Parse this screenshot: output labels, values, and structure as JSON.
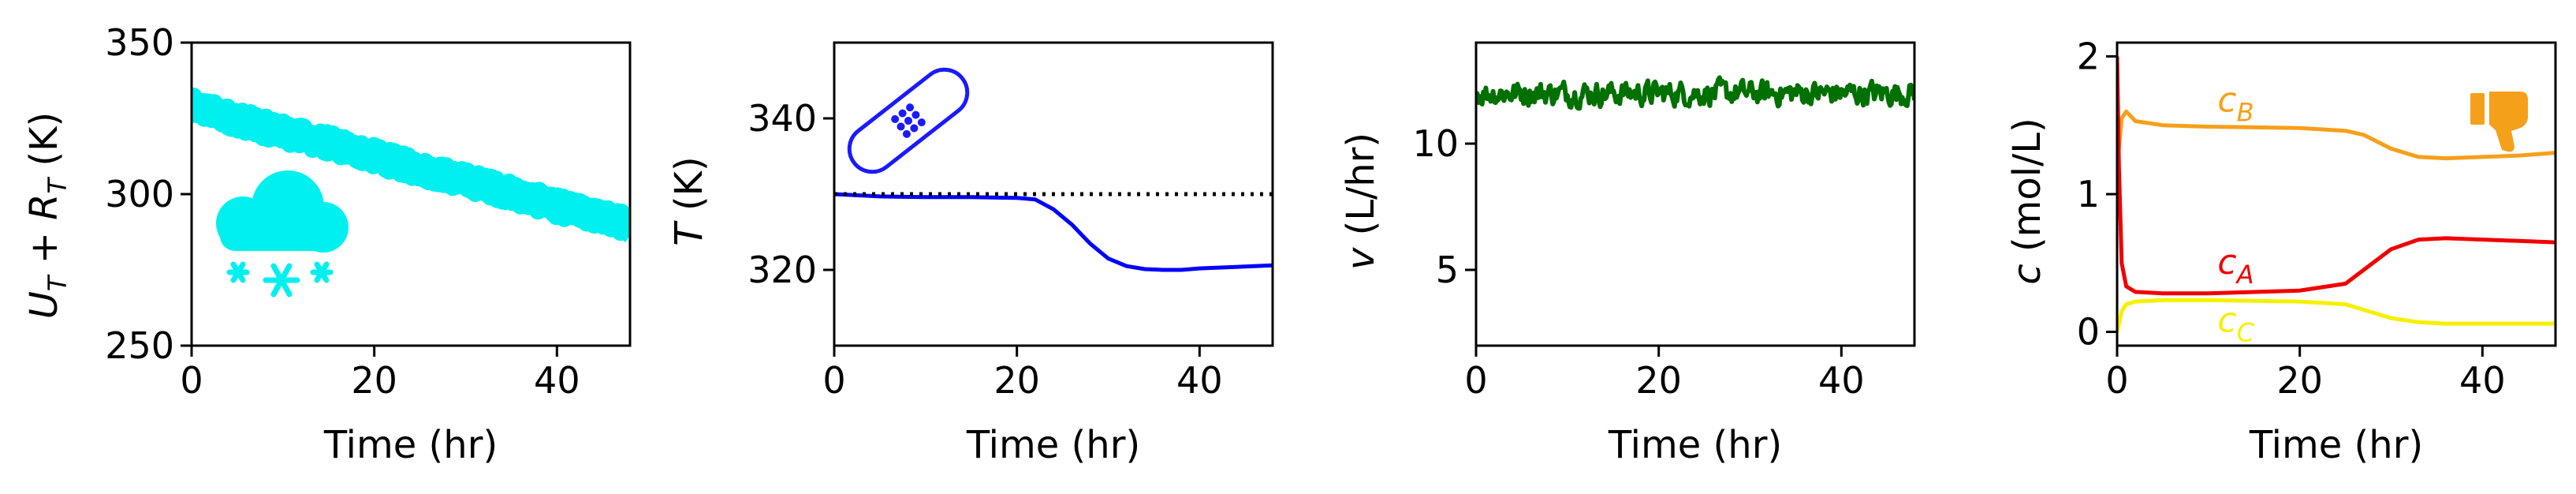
{
  "chart_data": [
    {
      "type": "line",
      "xlabel": "Time (hr)",
      "ylabel_tex": "U_T + R_T (K)",
      "xlim": [
        0,
        48
      ],
      "ylim": [
        250,
        350
      ],
      "xticks": [
        "0",
        "20",
        "40"
      ],
      "yticks": [
        "250",
        "300",
        "350"
      ],
      "series": [
        {
          "color": "#00f0f0",
          "style": "noisy-band",
          "x": [
            0,
            8,
            16,
            24,
            32,
            40,
            48
          ],
          "values": [
            329,
            322,
            316,
            309,
            303,
            296,
            290
          ],
          "noise": 3.5
        }
      ],
      "icon": "snow-cloud-icon",
      "icon_color": "#00f0f0"
    },
    {
      "type": "line",
      "xlabel": "Time (hr)",
      "ylabel_tex": "T (K)",
      "xlim": [
        0,
        48
      ],
      "ylim": [
        310,
        350
      ],
      "xticks": [
        "0",
        "20",
        "40"
      ],
      "yticks": [
        "320",
        "340"
      ],
      "series": [
        {
          "color": "#0000ff",
          "x": [
            0,
            5,
            10,
            15,
            20,
            22,
            24,
            26,
            28,
            30,
            32,
            34,
            36,
            38,
            40,
            44,
            48
          ],
          "values": [
            330,
            329.7,
            329.6,
            329.6,
            329.5,
            329.3,
            328,
            326,
            323.5,
            321.5,
            320.5,
            320.1,
            320,
            320,
            320.2,
            320.4,
            320.6
          ]
        },
        {
          "color": "#000000",
          "style": "dotted",
          "x": [
            0,
            48
          ],
          "values": [
            330,
            330
          ]
        }
      ],
      "icon": "bandage-icon",
      "icon_color": "#1a1aff"
    },
    {
      "type": "line",
      "xlabel": "Time (hr)",
      "ylabel_tex": "v (L/hr)",
      "xlim": [
        0,
        48
      ],
      "ylim": [
        2,
        14
      ],
      "xticks": [
        "0",
        "20",
        "40"
      ],
      "yticks": [
        "5",
        "10"
      ],
      "series": [
        {
          "color": "#007000",
          "style": "noisy-line",
          "x": [
            0,
            48
          ],
          "values": [
            12,
            12
          ],
          "noise": 0.4
        }
      ]
    },
    {
      "type": "line",
      "xlabel": "Time (hr)",
      "ylabel_tex": "c (mol/L)",
      "xlim": [
        0,
        48
      ],
      "ylim": [
        -0.1,
        2.1
      ],
      "xticks": [
        "0",
        "20",
        "40"
      ],
      "yticks": [
        "0",
        "1",
        "2"
      ],
      "series": [
        {
          "name_main": "c",
          "name_sub": "B",
          "color": "#f5a01a",
          "x": [
            0,
            0.5,
            1,
            2,
            5,
            10,
            20,
            25,
            27,
            30,
            33,
            36,
            40,
            44,
            48
          ],
          "values": [
            1.2,
            1.55,
            1.6,
            1.53,
            1.5,
            1.49,
            1.48,
            1.46,
            1.43,
            1.33,
            1.27,
            1.26,
            1.27,
            1.28,
            1.3
          ],
          "label_at": [
            11,
            1.6
          ]
        },
        {
          "name_main": "c",
          "name_sub": "A",
          "color": "#f00000",
          "x": [
            0,
            0.2,
            0.5,
            1,
            2,
            5,
            10,
            20,
            25,
            27,
            30,
            33,
            36,
            40,
            44,
            48
          ],
          "values": [
            2.0,
            1.2,
            0.5,
            0.33,
            0.29,
            0.28,
            0.28,
            0.3,
            0.35,
            0.45,
            0.6,
            0.67,
            0.68,
            0.67,
            0.66,
            0.65
          ],
          "label_at": [
            11,
            0.42
          ]
        },
        {
          "name_main": "c",
          "name_sub": "C",
          "color": "#f5f000",
          "x": [
            0,
            0.5,
            1,
            2,
            5,
            10,
            20,
            25,
            27,
            30,
            33,
            36,
            40,
            48
          ],
          "values": [
            0,
            0.15,
            0.2,
            0.22,
            0.23,
            0.23,
            0.22,
            0.2,
            0.16,
            0.1,
            0.07,
            0.06,
            0.06,
            0.06
          ],
          "label_at": [
            11,
            0.0
          ]
        }
      ],
      "icon": "thumbs-down-icon",
      "icon_color": "#f5a01a"
    }
  ]
}
